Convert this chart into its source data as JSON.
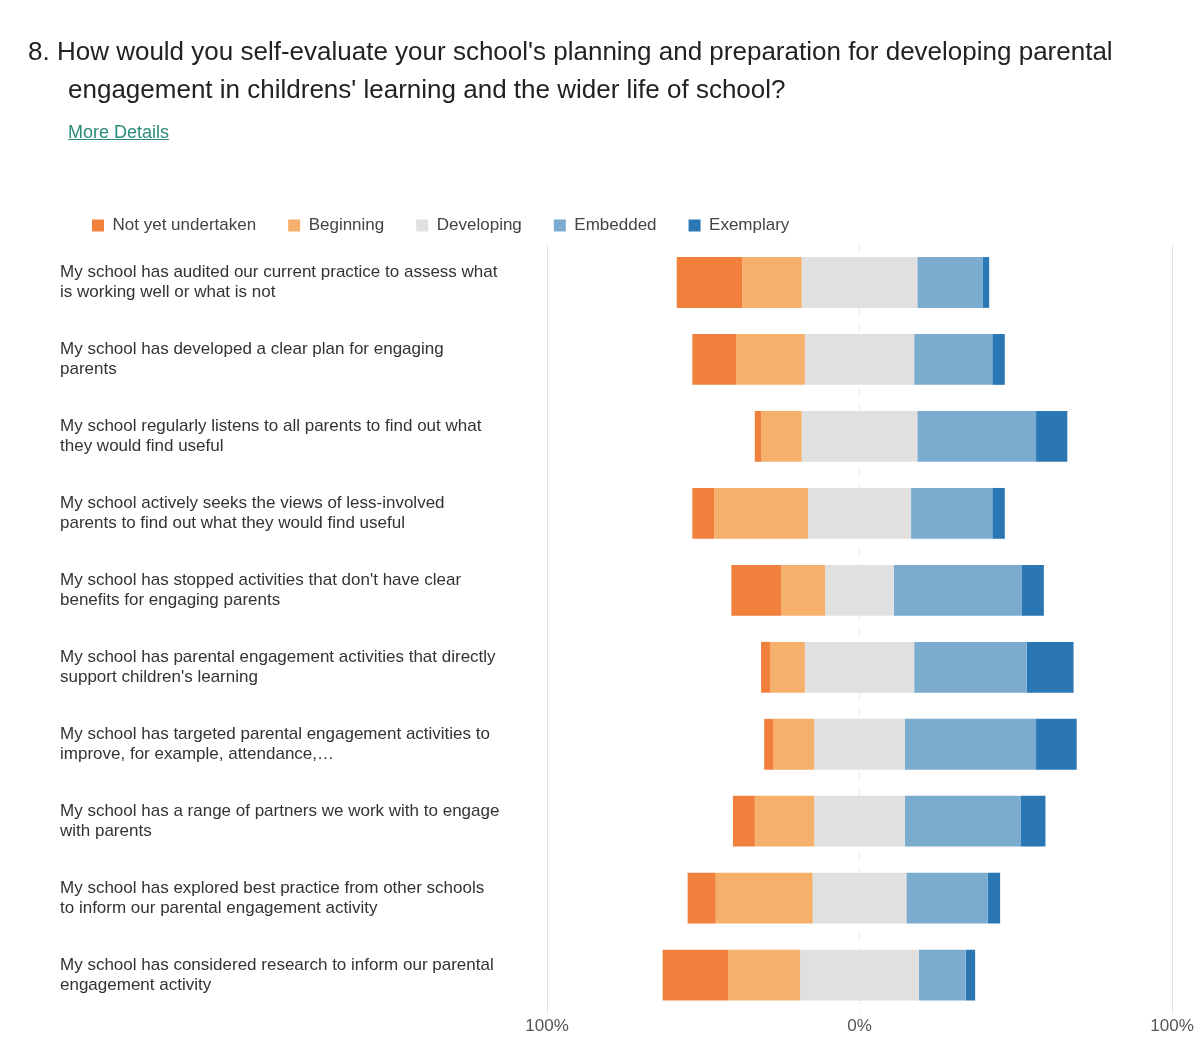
{
  "chart_data": {
    "type": "bar",
    "orientation": "horizontal",
    "title": "8. How would you self-evaluate your school's planning and preparation for developing parental engagement in childrens' learning and the wider life of school?",
    "annotations": [
      "More Details"
    ],
    "categories": [
      "My school has audited our current practice to assess what is working well or what is not",
      "My school has developed a clear plan for engaging parents",
      "My school regularly listens to all parents to find out what they would find useful",
      "My school actively seeks the views of less-involved parents to find out what they would find useful",
      "My school has stopped activities that don't have clear benefits for engaging parents",
      "My school has parental engagement activities that directly support children's learning",
      "My school has targeted parental engagement activities to improve, for example, attendance,…",
      "My school has a range of partners we work with to engage with parents",
      "My school has explored best practice from other schools to inform our parental engagement activity",
      "My school has considered research to inform our parental engagement activity"
    ],
    "series": [
      {
        "name": "Not yet undertaken",
        "color": "#f0803c",
        "values": [
          21,
          14,
          2,
          7,
          16,
          3,
          3,
          7,
          9,
          21
        ],
        "base": [
          -58.5,
          -53.5,
          -33.5,
          -53.5,
          -41,
          -31.5,
          -30.5,
          -40.5,
          -55,
          -63
        ]
      },
      {
        "name": "Beginning",
        "color": "#f5b06c",
        "values": [
          19,
          22,
          13,
          30,
          14,
          11,
          13,
          19,
          31,
          23
        ],
        "base": [
          -37.5,
          -39.5,
          -31.5,
          -46.5,
          -25,
          -28.5,
          -27.5,
          -33.5,
          -46,
          -42
        ]
      },
      {
        "name": "Developing",
        "color": "#e0e0e0",
        "values": [
          37,
          35,
          37,
          33,
          22,
          35,
          29,
          29,
          30,
          38
        ],
        "base": [
          -18.5,
          -17.5,
          -18.5,
          -16.5,
          -11,
          -17.5,
          -14.5,
          -14.5,
          -15,
          -19
        ]
      },
      {
        "name": "Embedded",
        "color": "#7bacd0",
        "values": [
          21,
          25,
          38,
          26,
          41,
          36,
          42,
          37,
          26,
          15
        ],
        "base": [
          18.5,
          17.5,
          18.5,
          16.5,
          11,
          17.5,
          14.5,
          14.5,
          15,
          19
        ]
      },
      {
        "name": "Exemplary",
        "color": "#2a77b4",
        "values": [
          2,
          4,
          10,
          4,
          7,
          15,
          13,
          8,
          4,
          3
        ],
        "base": [
          39.5,
          42.5,
          56.5,
          42.5,
          52,
          53.5,
          56.5,
          51.5,
          41,
          34
        ]
      }
    ],
    "xlim": [
      -100,
      100
    ],
    "xticks": [
      {
        "value": -100,
        "label": "100%"
      },
      {
        "value": 0,
        "label": "0%"
      },
      {
        "value": 100,
        "label": "100%"
      }
    ],
    "grid": "x",
    "legend": "top left"
  }
}
